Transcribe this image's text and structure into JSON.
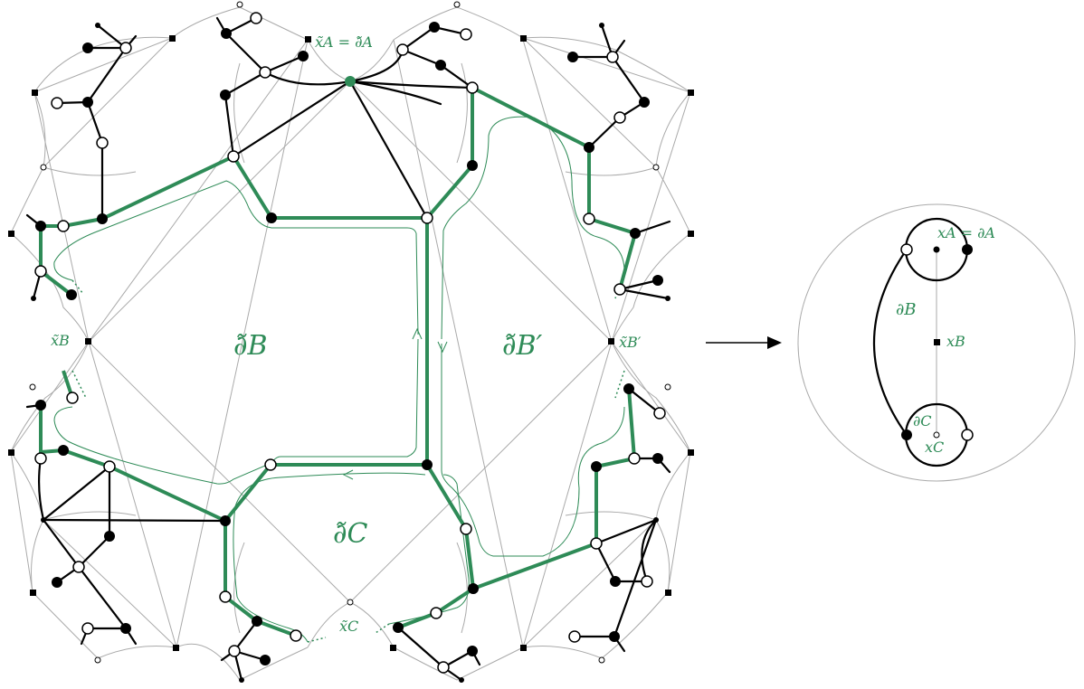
{
  "colors": {
    "green": "#2e8b57",
    "black": "#000000",
    "grey": "#aaaaaa",
    "white": "#ffffff"
  },
  "labels": {
    "region_b": "∂̃B",
    "region_bprime": "∂̃B′",
    "region_c": "∂̃C",
    "point_xa": "x̃A = ∂̃A",
    "point_xb": "x̃B",
    "point_xbprime": "x̃B′",
    "point_xc": "x̃C",
    "right_xa": "xA = ∂A",
    "right_db": "∂B",
    "right_xb": "xB",
    "right_dc": "∂C",
    "right_xc": "xC"
  },
  "arrow_icon": "right-arrow-icon"
}
